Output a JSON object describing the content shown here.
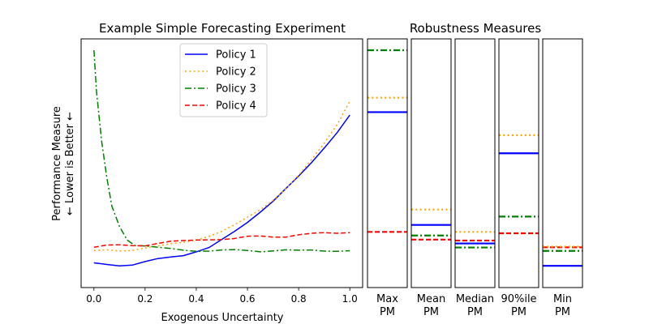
{
  "chart_data": [
    {
      "type": "line",
      "title": "Example Simple Forecasting Experiment",
      "xlabel": "Exogenous Uncertainty",
      "ylabel_line1": "Performance Measure",
      "ylabel_line2": "← Lower is Better ←",
      "xlim": [
        -0.05,
        1.05
      ],
      "ylim": [
        0.0,
        1.0
      ],
      "xticks": [
        0.0,
        0.2,
        0.4,
        0.6,
        0.8,
        1.0
      ],
      "xtick_labels": [
        "0.0",
        "0.2",
        "0.4",
        "0.6",
        "0.8",
        "1.0"
      ],
      "y_ticks_shown": false,
      "legend_position": "upper center",
      "series": [
        {
          "name": "Policy 1",
          "color": "#0000ff",
          "linestyle": "solid",
          "x": [
            0.0,
            0.05,
            0.1,
            0.15,
            0.2,
            0.25,
            0.3,
            0.35,
            0.4,
            0.45,
            0.5,
            0.55,
            0.6,
            0.65,
            0.7,
            0.75,
            0.8,
            0.85,
            0.9,
            0.95,
            1.0
          ],
          "y": [
            0.059,
            0.052,
            0.046,
            0.049,
            0.065,
            0.078,
            0.085,
            0.091,
            0.108,
            0.127,
            0.163,
            0.199,
            0.238,
            0.283,
            0.332,
            0.388,
            0.443,
            0.502,
            0.567,
            0.635,
            0.713
          ]
        },
        {
          "name": "Policy 2",
          "color": "#ffa500",
          "linestyle": "dotted",
          "x": [
            0.0,
            0.05,
            0.1,
            0.15,
            0.2,
            0.25,
            0.3,
            0.35,
            0.4,
            0.45,
            0.5,
            0.55,
            0.6,
            0.65,
            0.7,
            0.75,
            0.8,
            0.85,
            0.9,
            0.95,
            1.0
          ],
          "y": [
            0.114,
            0.117,
            0.112,
            0.114,
            0.125,
            0.134,
            0.144,
            0.15,
            0.16,
            0.176,
            0.199,
            0.228,
            0.261,
            0.294,
            0.336,
            0.387,
            0.447,
            0.515,
            0.589,
            0.67,
            0.775
          ]
        },
        {
          "name": "Policy 3",
          "color": "#008000",
          "linestyle": "dashdot",
          "x": [
            0.0,
            0.01,
            0.03,
            0.05,
            0.07,
            0.1,
            0.13,
            0.16,
            0.2,
            0.25,
            0.3,
            0.35,
            0.4,
            0.45,
            0.5,
            0.55,
            0.6,
            0.65,
            0.7,
            0.75,
            0.8,
            0.85,
            0.9,
            0.95,
            1.0
          ],
          "y": [
            1.0,
            0.82,
            0.6,
            0.44,
            0.31,
            0.22,
            0.16,
            0.136,
            0.134,
            0.128,
            0.123,
            0.115,
            0.11,
            0.111,
            0.116,
            0.118,
            0.114,
            0.108,
            0.112,
            0.117,
            0.115,
            0.116,
            0.111,
            0.11,
            0.113
          ]
        },
        {
          "name": "Policy 4",
          "color": "#ff0000",
          "linestyle": "dashed",
          "x": [
            0.0,
            0.05,
            0.1,
            0.15,
            0.2,
            0.25,
            0.3,
            0.35,
            0.4,
            0.45,
            0.5,
            0.55,
            0.6,
            0.65,
            0.7,
            0.75,
            0.8,
            0.85,
            0.9,
            0.95,
            1.0
          ],
          "y": [
            0.128,
            0.138,
            0.139,
            0.135,
            0.134,
            0.145,
            0.155,
            0.158,
            0.16,
            0.161,
            0.162,
            0.167,
            0.177,
            0.178,
            0.173,
            0.173,
            0.183,
            0.19,
            0.193,
            0.19,
            0.193
          ]
        }
      ]
    },
    {
      "type": "bar",
      "title": "Robustness Measures",
      "y_ticks_shown": false,
      "ylim": [
        0.0,
        1.0
      ],
      "panels": [
        {
          "label_line1": "Max",
          "label_line2": "PM",
          "values": {
            "Policy 1": 0.726,
            "Policy 2": 0.79,
            "Policy 3": 1.0,
            "Policy 4": 0.196
          }
        },
        {
          "label_line1": "Mean",
          "label_line2": "PM",
          "values": {
            "Policy 1": 0.227,
            "Policy 2": 0.295,
            "Policy 3": 0.18,
            "Policy 4": 0.162
          }
        },
        {
          "label_line1": "Median",
          "label_line2": "PM",
          "values": {
            "Policy 1": 0.145,
            "Policy 2": 0.196,
            "Policy 3": 0.127,
            "Policy 4": 0.158
          }
        },
        {
          "label_line1": "90%ile",
          "label_line2": "PM",
          "values": {
            "Policy 1": 0.544,
            "Policy 2": 0.624,
            "Policy 3": 0.264,
            "Policy 4": 0.19
          }
        },
        {
          "label_line1": "Min",
          "label_line2": "PM",
          "values": {
            "Policy 1": 0.046,
            "Policy 2": 0.131,
            "Policy 3": 0.112,
            "Policy 4": 0.128
          }
        }
      ]
    }
  ]
}
